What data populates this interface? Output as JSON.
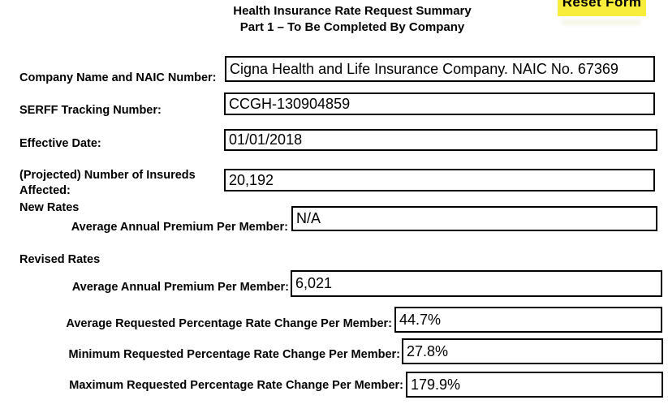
{
  "header": {
    "title_line1": "Health Insurance Rate Request Summary",
    "title_line2": "Part 1 – To Be Completed By Company"
  },
  "toolbar": {
    "reset_label": "Reset Form",
    "reset_bg": "#f8ed3a"
  },
  "sections": {
    "new_rates_label": "New Rates",
    "revised_rates_label": "Revised Rates"
  },
  "fields": [
    {
      "label": "Company Name and NAIC Number:",
      "value": "Cigna Health and Life Insurance Company. NAIC No. 67369"
    },
    {
      "label": "SERFF Tracking Number:",
      "value": "CCGH-130904859"
    },
    {
      "label": "Effective Date:",
      "value": "01/01/2018"
    },
    {
      "label_line1": "(Projected) Number of Insureds",
      "label_line2": "Affected:",
      "value": "20,192"
    },
    {
      "label": "Average Annual Premium Per Member:",
      "value": "N/A"
    },
    {
      "label": "Average Annual Premium Per Member:",
      "value": "6,021"
    },
    {
      "label": "Average Requested Percentage Rate Change Per Member:",
      "value": "44.7%"
    },
    {
      "label": "Minimum Requested Percentage Rate Change Per Member:",
      "value": "27.8%"
    },
    {
      "label": "Maximum Requested Percentage Rate Change Per Member:",
      "value": "179.9%"
    }
  ]
}
